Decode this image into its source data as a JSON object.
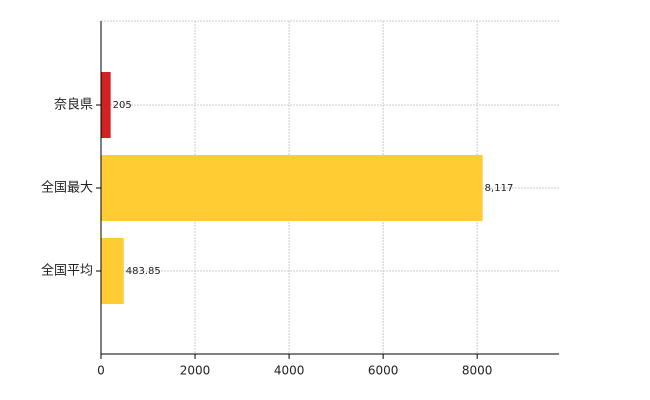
{
  "chart_data": {
    "type": "hbar",
    "categories": [
      "奈良県",
      "全国最大",
      "全国平均"
    ],
    "values": [
      205,
      8117,
      483.85
    ],
    "value_labels": [
      "205",
      "8,117",
      "483.85"
    ],
    "colors": [
      "#d42020",
      "#ffcc33",
      "#ffcc33"
    ],
    "xlim": [
      0,
      9740
    ],
    "xticks": [
      0,
      2000,
      4000,
      6000,
      8000
    ],
    "grid": true
  }
}
